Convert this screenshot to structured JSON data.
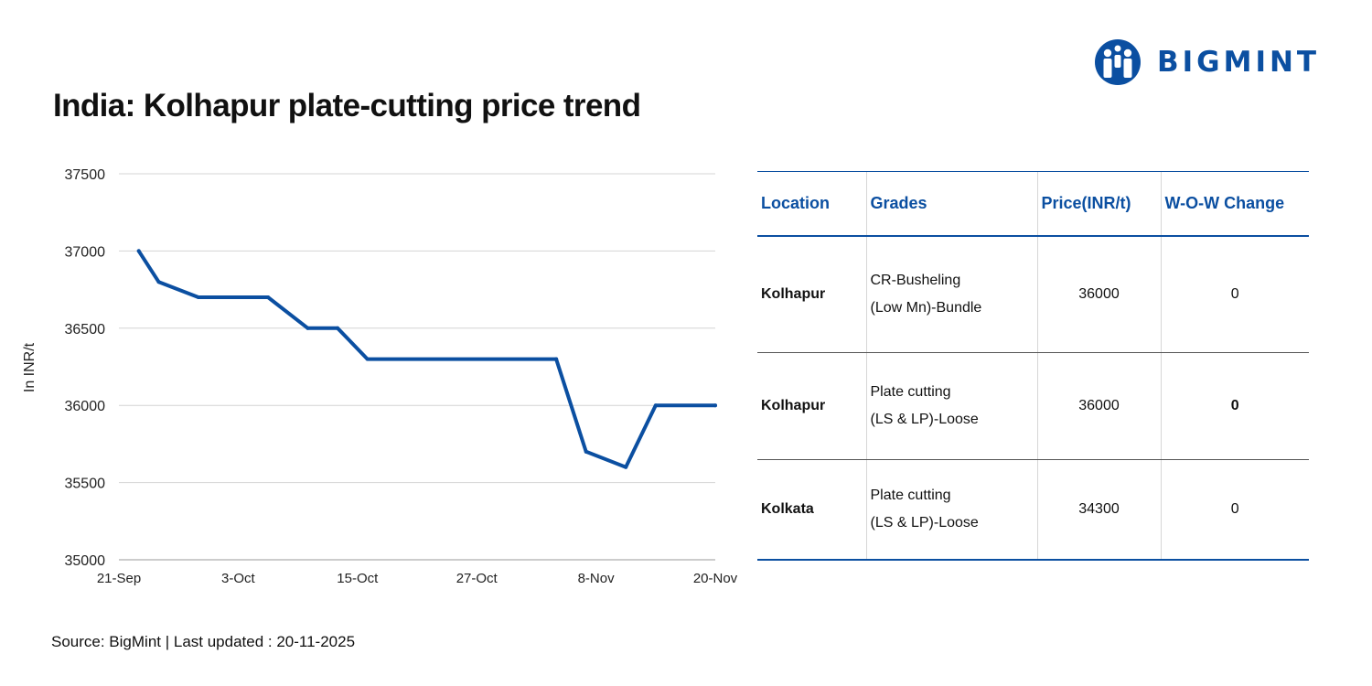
{
  "brand": {
    "name": "BIGMINT",
    "icon": "bigmint-people-logo-icon",
    "color": "#0b4fa1"
  },
  "title": "India: Kolhapur plate-cutting price trend",
  "chart_data": {
    "type": "line",
    "title": "India: Kolhapur plate-cutting price trend",
    "ylabel": "In INR/t",
    "xlabel": "",
    "ylim": [
      35000,
      37500
    ],
    "yticks": [
      35000,
      35500,
      36000,
      36500,
      37000,
      37500
    ],
    "x_tick_labels": [
      {
        "day": 0,
        "label": "21-Sep"
      },
      {
        "day": 12,
        "label": "3-Oct"
      },
      {
        "day": 24,
        "label": "15-Oct"
      },
      {
        "day": 36,
        "label": "27-Oct"
      },
      {
        "day": 48,
        "label": "8-Nov"
      },
      {
        "day": 60,
        "label": "20-Nov"
      }
    ],
    "xlim_days": [
      0,
      60
    ],
    "grid": true,
    "line_color": "#0b4fa1",
    "series": [
      {
        "name": "Plate cutting (LS & LP)-Loose, Kolhapur",
        "points": [
          {
            "day": 2,
            "value": 37000
          },
          {
            "day": 4,
            "value": 36800
          },
          {
            "day": 8,
            "value": 36700
          },
          {
            "day": 15,
            "value": 36700
          },
          {
            "day": 19,
            "value": 36500
          },
          {
            "day": 22,
            "value": 36500
          },
          {
            "day": 25,
            "value": 36300
          },
          {
            "day": 44,
            "value": 36300
          },
          {
            "day": 47,
            "value": 35700
          },
          {
            "day": 51,
            "value": 35600
          },
          {
            "day": 54,
            "value": 36000
          },
          {
            "day": 60,
            "value": 36000
          }
        ]
      }
    ]
  },
  "table": {
    "headers": [
      "Location",
      "Grades",
      "Price(INR/t)",
      "W-O-W Change"
    ],
    "rows": [
      {
        "location": "Kolhapur",
        "grade_line1": "CR-Busheling",
        "grade_line2": "(Low Mn)-Bundle",
        "price": "36000",
        "change": "0"
      },
      {
        "location": "Kolhapur",
        "grade_line1": "Plate cutting",
        "grade_line2": "(LS & LP)-Loose",
        "price": "36000",
        "change": "0"
      },
      {
        "location": "Kolkata",
        "grade_line1": "Plate cutting",
        "grade_line2": "(LS & LP)-Loose",
        "price": "34300",
        "change": "0"
      }
    ]
  },
  "source": "Source: BigMint | Last updated : 20-11-2025"
}
